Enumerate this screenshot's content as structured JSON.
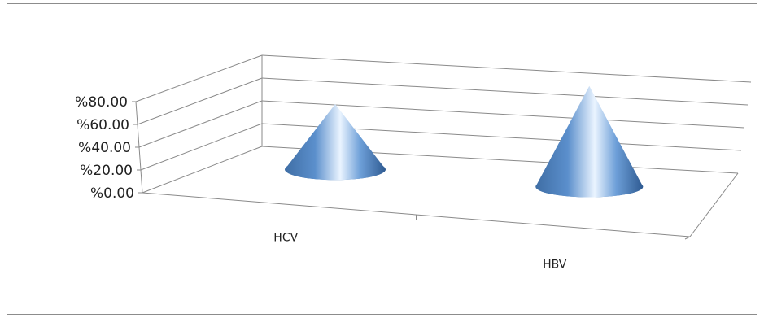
{
  "chart_data": {
    "type": "bar",
    "style": "3d-cone",
    "categories": [
      "HCV",
      "HBV"
    ],
    "series": [
      {
        "values": [
          37,
          57
        ]
      }
    ],
    "y_tick_labels": [
      "%0.00",
      "%20.00",
      "%40.00",
      "%60.00",
      "%80.00"
    ],
    "ylim": [
      0,
      80
    ],
    "grid": true,
    "legend": "none",
    "bar_color": "#4f81bd"
  }
}
